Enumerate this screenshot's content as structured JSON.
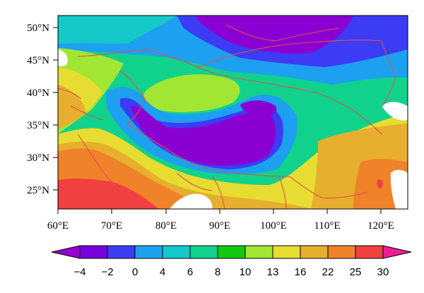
{
  "map": {
    "lon_ticks": [
      "60°E",
      "70°E",
      "80°E",
      "90°E",
      "100°E",
      "110°E",
      "120°E"
    ],
    "lat_ticks": [
      "50°N",
      "45°N",
      "40°N",
      "35°N",
      "30°N",
      "25°N"
    ]
  },
  "colorbar": {
    "labels": [
      "−4",
      "−2",
      "0",
      "4",
      "6",
      "8",
      "10",
      "13",
      "16",
      "22",
      "25",
      "30"
    ],
    "colors": [
      "#9600d2",
      "#7800dc",
      "#3c3cf5",
      "#1ea0f0",
      "#14c8c8",
      "#10d28c",
      "#12c812",
      "#a0e632",
      "#e6dc32",
      "#e6af2d",
      "#f0822a",
      "#f04040",
      "#f01e96"
    ]
  },
  "colors": {
    "ocean": "#ffffff",
    "borders": "#e0504a",
    "lowest": "#8a00d2",
    "highest": "#f04040"
  }
}
